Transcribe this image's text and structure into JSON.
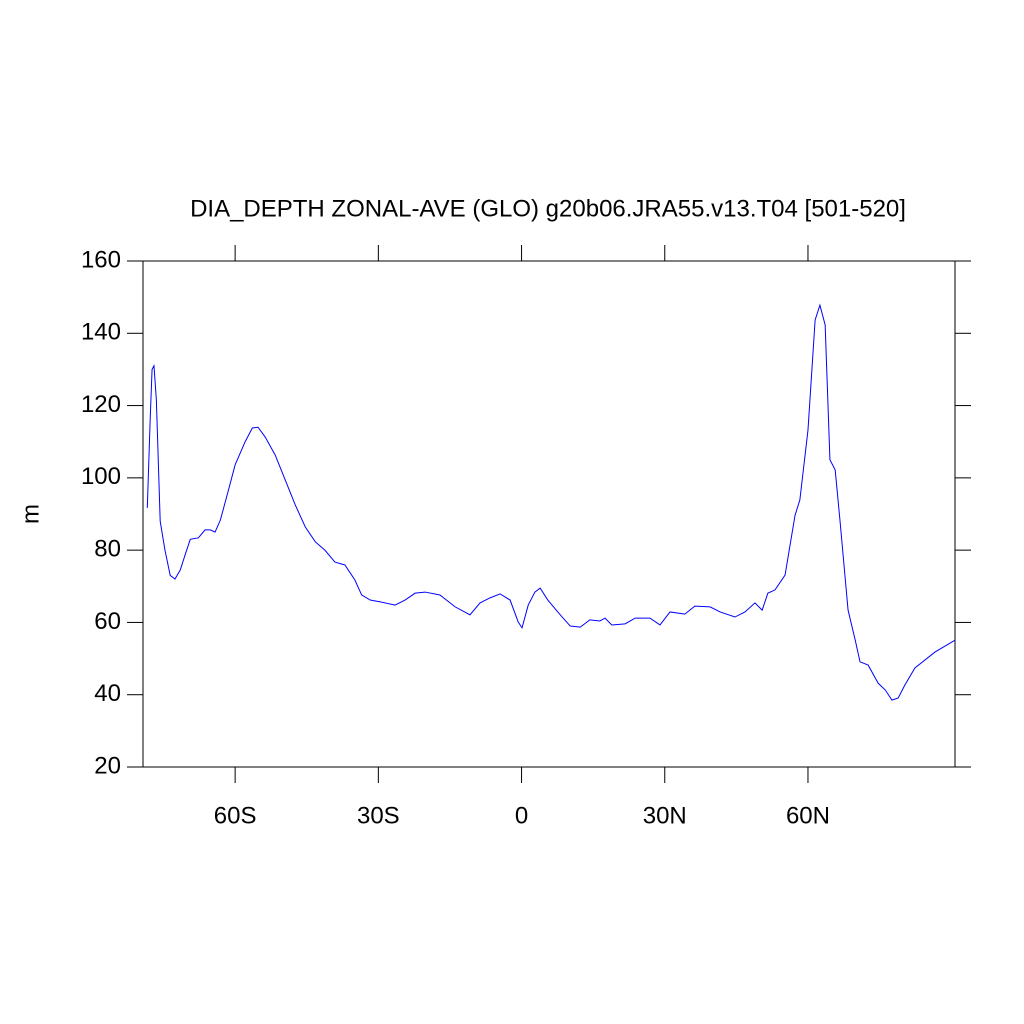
{
  "chart_data": {
    "type": "line",
    "title": "DIA_DEPTH ZONAL-AVE (GLO) g20b06.JRA55.v13.T04 [501-520]",
    "y_label": "m",
    "xlim": [
      -79.3,
      90.8
    ],
    "ylim": [
      20,
      160
    ],
    "xticks": [
      {
        "value": -60,
        "label": "60S"
      },
      {
        "value": -30,
        "label": "30S"
      },
      0,
      {
        "value": 30,
        "label": "30N"
      },
      {
        "value": 60,
        "label": "60N"
      }
    ],
    "yticks": [
      20,
      40,
      60,
      80,
      100,
      120,
      140,
      160
    ],
    "series": [
      {
        "color": "#0000ff",
        "x": [
          -78.4,
          -77.8,
          -77.4,
          -77.0,
          -76.5,
          -75.7,
          -74.7,
          -73.6,
          -72.6,
          -71.5,
          -70.5,
          -69.4,
          -67.7,
          -66.3,
          -65.2,
          -64.2,
          -63.1,
          -61.4,
          -60.0,
          -57.9,
          -56.4,
          -55.2,
          -53.7,
          -51.6,
          -49.5,
          -47.4,
          -45.3,
          -43.2,
          -41.2,
          -39.1,
          -37.0,
          -34.9,
          -33.5,
          -31.7,
          -29.6,
          -26.5,
          -24.4,
          -22.3,
          -20.2,
          -17.1,
          -13.9,
          -10.8,
          -8.7,
          -6.6,
          -4.5,
          -2.4,
          -0.7,
          0.1,
          1.4,
          2.8,
          3.9,
          5.5,
          8.1,
          10.2,
          12.3,
          14.3,
          16.4,
          17.5,
          18.9,
          21.7,
          23.8,
          26.9,
          29.0,
          31.1,
          34.2,
          36.3,
          39.5,
          41.6,
          44.7,
          46.8,
          48.9,
          50.4,
          51.6,
          53.1,
          55.2,
          57.3,
          58.3,
          60.0,
          61.5,
          62.5,
          63.6,
          64.6,
          65.7,
          66.7,
          68.4,
          69.9,
          70.9,
          72.6,
          74.7,
          76.2,
          77.6,
          78.9,
          80.3,
          82.4,
          86.6,
          90.8
        ],
        "values": [
          91.7,
          116,
          130,
          131,
          121.5,
          88,
          80,
          73,
          72,
          74.5,
          78.6,
          83,
          83.4,
          85.6,
          85.6,
          85,
          88.3,
          96.6,
          103.6,
          110,
          113.8,
          114,
          111.3,
          106.3,
          99.4,
          92.5,
          86.4,
          82.3,
          80,
          76.7,
          75.9,
          71.7,
          67.6,
          66.2,
          65.7,
          64.8,
          66.2,
          68.1,
          68.4,
          67.6,
          64.3,
          62.1,
          65.4,
          66.8,
          67.9,
          66.2,
          60.1,
          58.5,
          64.8,
          68.4,
          69.5,
          66.2,
          62.1,
          59,
          58.7,
          60.7,
          60.4,
          61.2,
          59.3,
          59.6,
          61.2,
          61.2,
          59.3,
          62.9,
          62.3,
          64.5,
          64.3,
          62.9,
          61.5,
          62.9,
          65.4,
          63.4,
          68.1,
          69,
          73.1,
          89.7,
          93.9,
          113.2,
          143.7,
          147.8,
          142.3,
          105,
          102.2,
          88.3,
          63.4,
          55.1,
          49.1,
          48.2,
          43.2,
          41.3,
          38.5,
          39.1,
          42.7,
          47.4,
          51.8,
          55.1
        ]
      }
    ]
  }
}
